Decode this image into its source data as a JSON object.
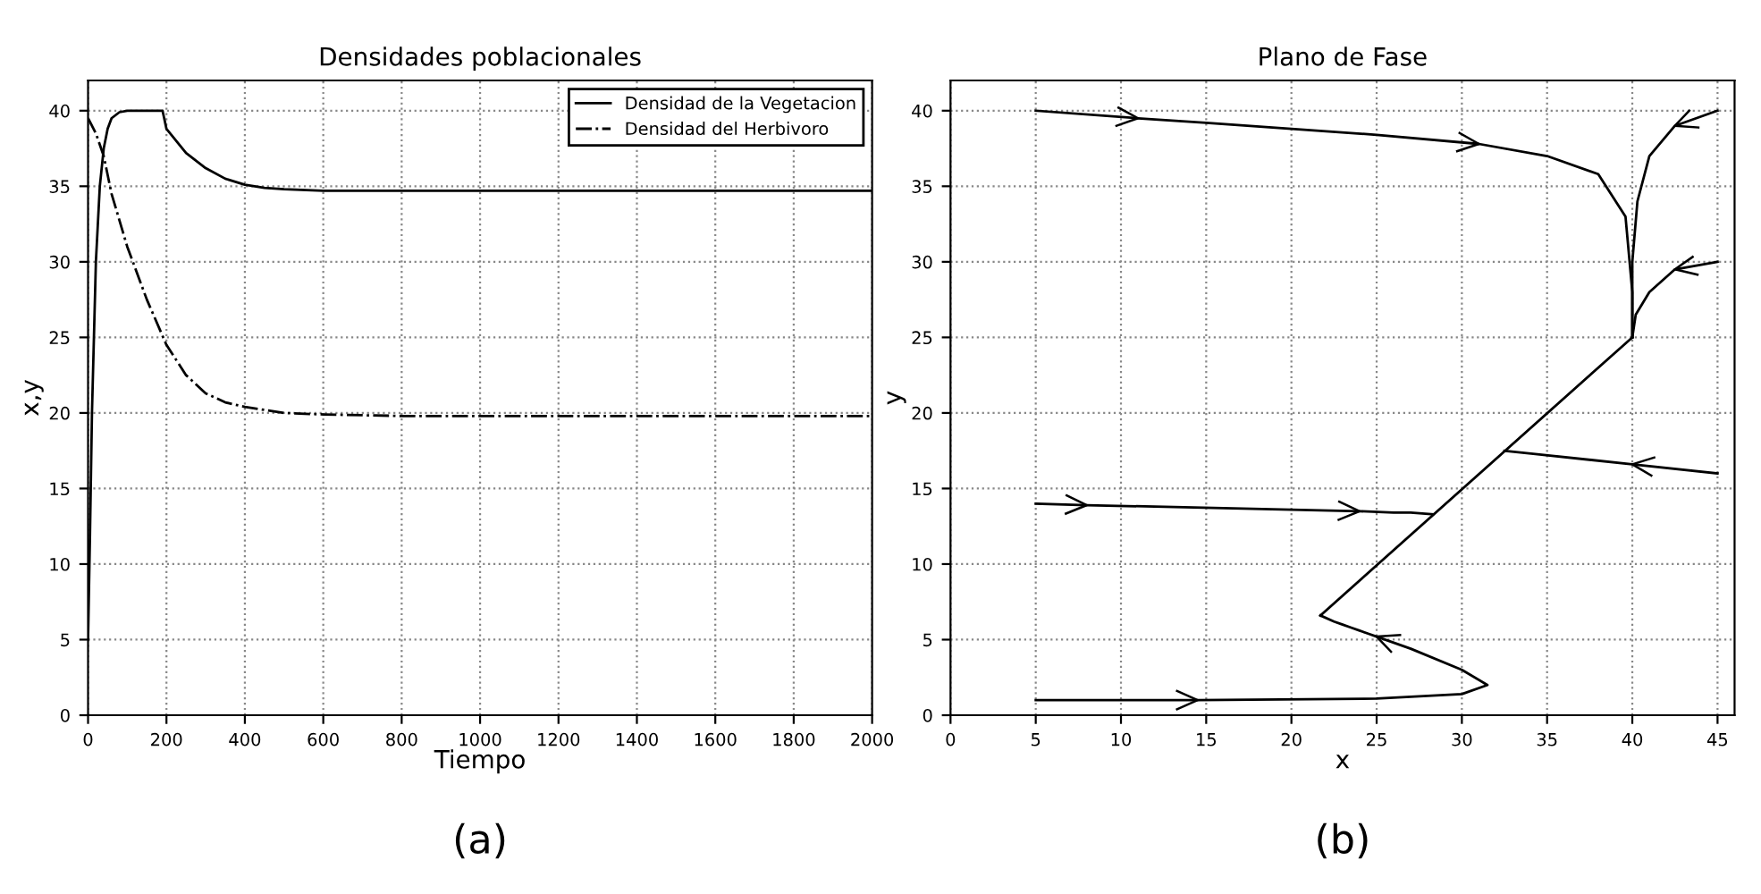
{
  "chart_data": [
    {
      "type": "line",
      "title": "Densidades poblacionales",
      "xlabel": "Tiempo",
      "ylabel": "x,y",
      "xlim": [
        0,
        2000
      ],
      "ylim": [
        0,
        42
      ],
      "xticks": [
        0,
        200,
        400,
        600,
        800,
        1000,
        1200,
        1400,
        1600,
        1800,
        2000
      ],
      "yticks": [
        0,
        5,
        10,
        15,
        20,
        25,
        30,
        35,
        40
      ],
      "grid": true,
      "legend": "top right",
      "annotations": [
        "(a)"
      ],
      "series": [
        {
          "name": "Densidad de la Vegetacion",
          "color": "#000000",
          "line_style": "solid",
          "x": [
            0,
            5,
            10,
            20,
            30,
            40,
            50,
            60,
            80,
            100,
            190,
            200,
            250,
            300,
            350,
            400,
            450,
            500,
            600,
            800,
            1000,
            1500,
            2000
          ],
          "values": [
            5,
            12,
            20,
            30,
            35,
            37.5,
            38.8,
            39.5,
            39.9,
            40,
            40,
            38.8,
            37.2,
            36.2,
            35.5,
            35.1,
            34.9,
            34.8,
            34.7,
            34.7,
            34.7,
            34.7,
            34.7
          ]
        },
        {
          "name": "Densidad del Herbivoro",
          "color": "#000000",
          "line_style": "dashdot",
          "x": [
            0,
            20,
            40,
            60,
            100,
            150,
            200,
            250,
            300,
            350,
            400,
            500,
            600,
            800,
            1000,
            1500,
            2000
          ],
          "values": [
            39.5,
            38.5,
            37,
            34.5,
            31,
            27.5,
            24.5,
            22.5,
            21.3,
            20.7,
            20.4,
            20,
            19.9,
            19.8,
            19.8,
            19.8,
            19.8
          ]
        }
      ]
    },
    {
      "type": "line",
      "title": "Plano de Fase",
      "xlabel": "x",
      "ylabel": "y",
      "xlim": [
        0,
        46
      ],
      "ylim": [
        0,
        42
      ],
      "xticks": [
        0,
        5,
        10,
        15,
        20,
        25,
        30,
        35,
        40,
        45
      ],
      "yticks": [
        0,
        5,
        10,
        15,
        20,
        25,
        30,
        35,
        40
      ],
      "grid": true,
      "annotations": [
        "(b)"
      ],
      "series": [
        {
          "color": "#000000",
          "x": [
            5,
            11,
            15,
            20,
            25,
            31,
            35,
            38,
            39.6,
            40,
            40
          ],
          "values": [
            40,
            39.5,
            39.2,
            38.8,
            38.4,
            37.8,
            37,
            35.8,
            33,
            28,
            25
          ]
        },
        {
          "color": "#000000",
          "x": [
            45,
            42.5,
            41,
            40.3,
            40,
            40
          ],
          "values": [
            40,
            39,
            37,
            34,
            30,
            25
          ]
        },
        {
          "color": "#000000",
          "x": [
            45,
            42.5,
            41,
            40.2,
            40
          ],
          "values": [
            30,
            29.5,
            28,
            26.5,
            25
          ]
        },
        {
          "color": "#000000",
          "x": [
            45,
            40,
            32.5
          ],
          "values": [
            16,
            16.6,
            17.5
          ]
        },
        {
          "color": "#000000",
          "x": [
            5,
            8,
            16,
            24,
            26,
            27,
            28.3
          ],
          "values": [
            14,
            13.9,
            13.7,
            13.5,
            13.4,
            13.4,
            13.3
          ]
        },
        {
          "color": "#000000",
          "x": [
            5,
            14.5,
            25,
            30,
            31.5,
            30,
            27,
            25,
            24.5,
            24,
            23.5,
            23,
            22.5,
            21.7
          ],
          "values": [
            1,
            1,
            1.1,
            1.4,
            2,
            3,
            4.4,
            5.2,
            5.4,
            5.6,
            5.8,
            6,
            6.2,
            6.6
          ]
        },
        {
          "color": "#000000",
          "x": [
            21.7,
            40
          ],
          "values": [
            6.6,
            25
          ]
        }
      ]
    }
  ]
}
